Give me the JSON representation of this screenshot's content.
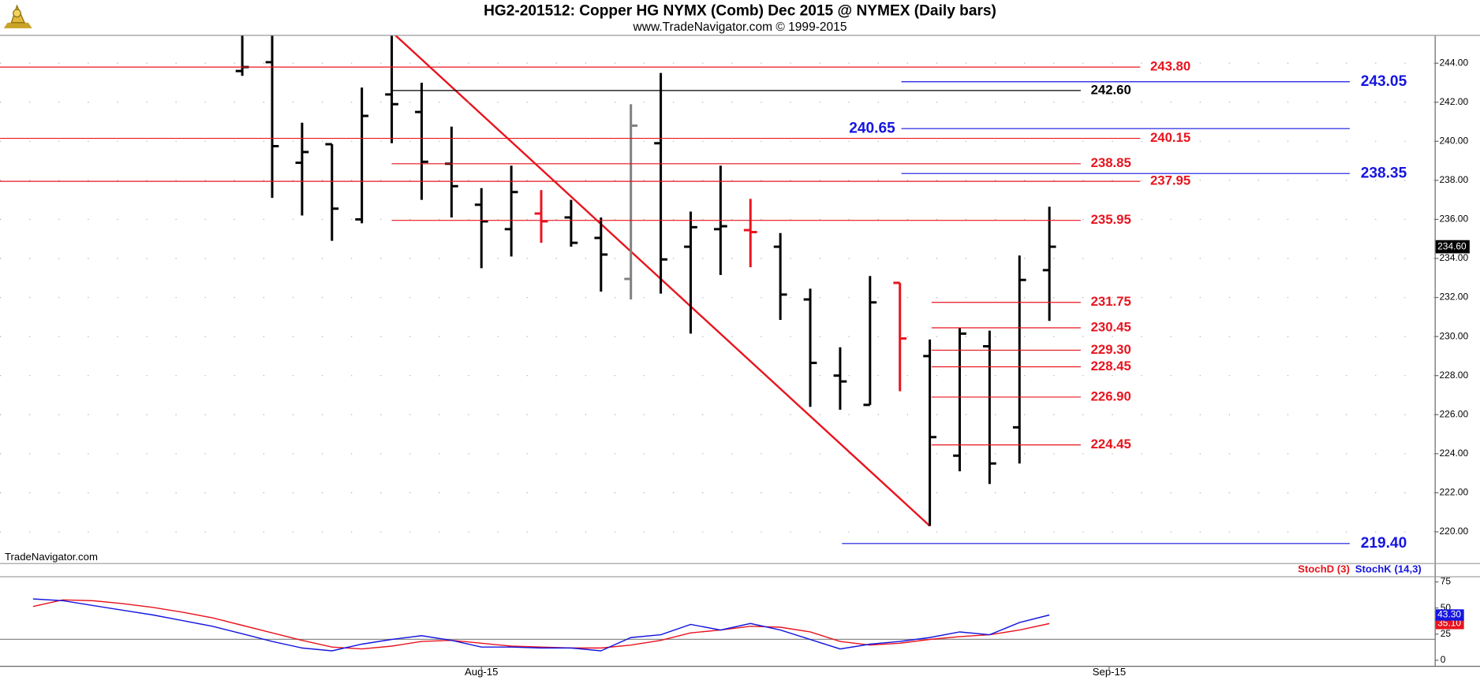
{
  "chart_data": [
    {
      "type": "ohlc",
      "title": "HG2-201512:  Copper HG NYMX (Comb) Dec 2015 @ NYMEX  (Daily bars)",
      "subtitle": "www.TradeNavigator.com © 1999-2015",
      "watermark": "TradeNavigator.com",
      "categories": [
        null,
        null,
        null,
        null,
        null,
        null,
        null,
        null,
        null,
        null,
        null,
        null,
        null,
        null,
        null,
        "Aug-15",
        null,
        null,
        null,
        null,
        null,
        null,
        null,
        null,
        null,
        null,
        null,
        null,
        null,
        null,
        null,
        null,
        null,
        null,
        null,
        null,
        "Sep-15"
      ],
      "open": [
        null,
        null,
        null,
        null,
        null,
        null,
        null,
        243.6,
        244.05,
        238.9,
        239.85,
        236.0,
        242.4,
        241.5,
        238.85,
        236.75,
        235.5,
        236.3,
        236.1,
        235.05,
        232.95,
        239.9,
        234.6,
        235.5,
        235.45,
        234.6,
        231.9,
        228.0,
        226.5,
        232.75,
        229.0,
        223.9,
        229.5,
        225.35,
        233.4,
        null,
        null
      ],
      "high": [
        null,
        null,
        null,
        null,
        null,
        null,
        null,
        245.6,
        245.6,
        240.95,
        239.85,
        242.75,
        245.6,
        243.0,
        240.75,
        237.6,
        238.75,
        237.5,
        237.0,
        236.1,
        241.9,
        243.5,
        236.4,
        238.75,
        237.05,
        235.3,
        232.45,
        229.45,
        233.1,
        232.75,
        229.85,
        230.45,
        230.3,
        234.15,
        236.65,
        null,
        null
      ],
      "low": [
        null,
        null,
        null,
        null,
        null,
        null,
        null,
        243.35,
        237.1,
        236.2,
        234.9,
        235.8,
        239.9,
        237.0,
        236.1,
        233.5,
        234.1,
        234.8,
        234.6,
        232.3,
        231.9,
        232.2,
        230.15,
        233.15,
        233.55,
        230.85,
        226.4,
        226.25,
        226.5,
        227.2,
        220.3,
        223.1,
        222.45,
        223.5,
        230.8,
        null,
        null
      ],
      "close": [
        null,
        null,
        null,
        null,
        null,
        null,
        null,
        243.8,
        239.75,
        239.45,
        236.55,
        241.3,
        241.9,
        238.95,
        237.7,
        235.9,
        237.4,
        235.9,
        234.8,
        234.2,
        240.8,
        233.95,
        235.6,
        235.65,
        235.35,
        232.15,
        228.65,
        227.7,
        231.75,
        229.9,
        224.85,
        230.15,
        223.5,
        232.9,
        234.6,
        null,
        null
      ],
      "bar_colors": [
        null,
        null,
        null,
        null,
        null,
        null,
        null,
        "#000000",
        "#000000",
        "#000000",
        "#000000",
        "#000000",
        "#000000",
        "#000000",
        "#000000",
        "#000000",
        "#000000",
        "#e8141e",
        "#000000",
        "#000000",
        "#808080",
        "#000000",
        "#000000",
        "#000000",
        "#e8141e",
        "#000000",
        "#000000",
        "#000000",
        "#000000",
        "#e8141e",
        "#000000",
        "#000000",
        "#000000",
        "#000000",
        "#000000",
        null,
        null
      ],
      "ylim": [
        218.4,
        245.4
      ],
      "yticks": [
        {
          "value": 220,
          "label": "220.00"
        },
        {
          "value": 222,
          "label": "222.00"
        },
        {
          "value": 224,
          "label": "224.00"
        },
        {
          "value": 226,
          "label": "226.00"
        },
        {
          "value": 228,
          "label": "228.00"
        },
        {
          "value": 230,
          "label": "230.00"
        },
        {
          "value": 232,
          "label": "232.00"
        },
        {
          "value": 234,
          "label": "234.00"
        },
        {
          "value": 236,
          "label": "236.00"
        },
        {
          "value": 238,
          "label": "238.00"
        },
        {
          "value": 240,
          "label": "240.00"
        },
        {
          "value": 242,
          "label": "242.00"
        },
        {
          "value": 244,
          "label": "244.00"
        }
      ],
      "grid": true,
      "last_price": {
        "value": 234.6,
        "label": "234.60"
      },
      "levels": [
        {
          "value": 243.8,
          "label": "243.80",
          "color": "#e8141e"
        },
        {
          "value": 242.6,
          "label": "242.60",
          "color": "#000000"
        },
        {
          "value": 243.05,
          "label": "243.05",
          "color": "#1515e0"
        },
        {
          "value": 240.65,
          "label": "240.65",
          "color": "#1515e0"
        },
        {
          "value": 240.15,
          "label": "240.15",
          "color": "#e8141e"
        },
        {
          "value": 238.85,
          "label": "238.85",
          "color": "#e8141e"
        },
        {
          "value": 237.95,
          "label": "237.95",
          "color": "#e8141e"
        },
        {
          "value": 238.35,
          "label": "238.35",
          "color": "#1515e0"
        },
        {
          "value": 235.95,
          "label": "235.95",
          "color": "#e8141e"
        },
        {
          "value": 231.75,
          "label": "231.75",
          "color": "#e8141e"
        },
        {
          "value": 230.45,
          "label": "230.45",
          "color": "#e8141e"
        },
        {
          "value": 229.3,
          "label": "229.30",
          "color": "#e8141e"
        },
        {
          "value": 228.45,
          "label": "228.45",
          "color": "#e8141e"
        },
        {
          "value": 226.9,
          "label": "226.90",
          "color": "#e8141e"
        },
        {
          "value": 224.45,
          "label": "224.45",
          "color": "#e8141e"
        },
        {
          "value": 219.4,
          "label": "219.40",
          "color": "#1515e0"
        }
      ]
    },
    {
      "type": "line",
      "series": [
        {
          "name": "StochD (3)",
          "color": "#e8141e",
          "last_value_label": "35.10",
          "values": [
            51.5,
            57.8,
            57.0,
            54.2,
            50.6,
            46.0,
            40.6,
            33.4,
            26.2,
            19.0,
            12.6,
            10.8,
            13.5,
            18.0,
            19.0,
            16.3,
            13.5,
            12.6,
            11.7,
            11.7,
            14.5,
            19.0,
            26.2,
            28.9,
            32.5,
            31.6,
            27.1,
            18.0,
            14.5,
            16.3,
            19.9,
            22.6,
            24.4,
            28.9,
            35.1,
            null,
            null
          ]
        },
        {
          "name": "StochK (14,3)",
          "color": "#1515e0",
          "last_value_label": "43.30",
          "values": [
            58.7,
            57.0,
            52.4,
            47.9,
            43.4,
            38.0,
            32.5,
            25.3,
            18.0,
            11.7,
            9.0,
            15.4,
            19.9,
            23.5,
            19.0,
            12.6,
            12.6,
            11.7,
            11.7,
            9.0,
            21.7,
            24.4,
            34.3,
            28.9,
            35.2,
            28.9,
            19.9,
            10.8,
            15.4,
            18.0,
            21.7,
            27.1,
            24.4,
            36.1,
            43.3,
            null,
            null
          ]
        }
      ],
      "ylim": [
        -5.4,
        79.5
      ],
      "yticks": [
        0,
        25,
        50,
        75
      ],
      "hlines": [
        20
      ]
    }
  ]
}
